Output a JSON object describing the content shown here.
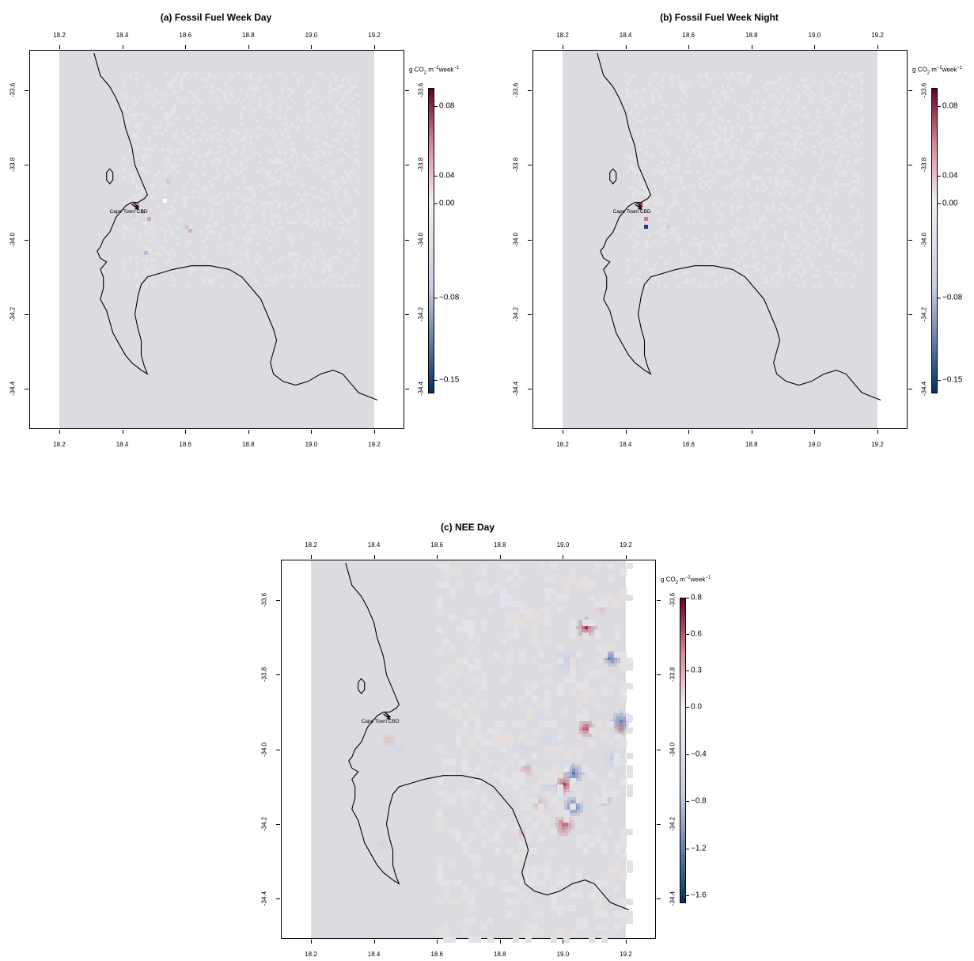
{
  "panels": [
    {
      "id": "a",
      "title": "(a) Fossil Fuel Week Day",
      "x_ticks": [
        "18.2",
        "18.4",
        "18.6",
        "18.8",
        "19.0",
        "19.2"
      ],
      "y_ticks": [
        "-33.6",
        "-33.8",
        "-34.0",
        "-34.2",
        "-34.4"
      ],
      "colorbar": {
        "units": "g CO2 m-2week-1",
        "labels": [
          "0.08",
          "0.04",
          "0.00",
          "−0.08",
          "−0.15"
        ],
        "max_color": "#67001f",
        "mid_color": "#f0f0f0",
        "min_color": "#053061"
      },
      "place_label": "Cape Town CBD"
    },
    {
      "id": "b",
      "title": "(b) Fossil Fuel Week Night",
      "x_ticks": [
        "18.2",
        "18.4",
        "18.6",
        "18.8",
        "19.0",
        "19.2"
      ],
      "y_ticks": [
        "-33.6",
        "-33.8",
        "-34.0",
        "-34.2",
        "-34.4"
      ],
      "colorbar": {
        "units": "g CO2 m-2week-1",
        "labels": [
          "0.08",
          "0.04",
          "0.00",
          "−0.08",
          "−0.15"
        ],
        "max_color": "#67001f",
        "mid_color": "#f0f0f0",
        "min_color": "#053061"
      },
      "place_label": "Cape Town CBD"
    },
    {
      "id": "c",
      "title": "(c) NEE Day",
      "x_ticks": [
        "18.2",
        "18.4",
        "18.6",
        "18.8",
        "19.0",
        "19.2"
      ],
      "y_ticks": [
        "-33.6",
        "-33.8",
        "-34.0",
        "-34.2",
        "-34.4"
      ],
      "colorbar": {
        "units": "g CO2 m-2week-1",
        "labels": [
          "0.8",
          "0.6",
          "0.3",
          "0.0",
          "−0.4",
          "−0.8",
          "−1.2",
          "−1.6"
        ],
        "max_color": "#67001f",
        "mid_color": "#f0f0f0",
        "min_color": "#053061"
      },
      "place_label": "Cape Town CBD"
    }
  ],
  "colors": {
    "background_grid": "#dcdce0",
    "coastline": "#000000"
  }
}
